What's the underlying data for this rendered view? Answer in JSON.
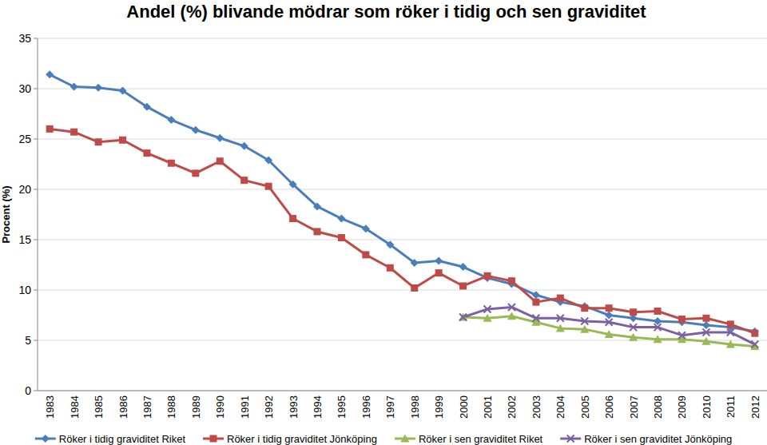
{
  "chart_data": {
    "type": "line",
    "title": "Andel (%) blivande mödrar som röker i tidig och sen graviditet",
    "y_label": "Procent (%)",
    "categories": [
      "1983",
      "1984",
      "1985",
      "1986",
      "1987",
      "1988",
      "1989",
      "1990",
      "1991",
      "1992",
      "1993",
      "1994",
      "1995",
      "1996",
      "1997",
      "1998",
      "1999",
      "2000",
      "2001",
      "2002",
      "2003",
      "2004",
      "2005",
      "2006",
      "2007",
      "2008",
      "2009",
      "2010",
      "2011",
      "2012"
    ],
    "ylim": [
      0,
      35
    ],
    "yticks": [
      0,
      5,
      10,
      15,
      20,
      25,
      30,
      35
    ],
    "grid": true,
    "legend": "bottom",
    "series": [
      {
        "name": "Röker i tidig graviditet Riket",
        "color": "#4a7ebb",
        "marker": "diamond",
        "line_style": "solid",
        "values": [
          31.4,
          30.2,
          30.1,
          29.8,
          28.2,
          26.9,
          25.9,
          25.1,
          24.3,
          22.9,
          20.5,
          18.3,
          17.1,
          16.1,
          14.5,
          12.7,
          12.9,
          12.3,
          11.2,
          10.6,
          9.5,
          8.8,
          8.4,
          7.5,
          7.2,
          6.9,
          6.8,
          6.5,
          6.3,
          5.9
        ]
      },
      {
        "name": "Röker i tidig graviditet Jönköping",
        "color": "#be4b48",
        "marker": "square",
        "line_style": "solid",
        "values": [
          26.0,
          25.7,
          24.7,
          24.9,
          23.6,
          22.6,
          21.6,
          22.8,
          20.9,
          20.3,
          17.1,
          15.8,
          15.2,
          13.5,
          12.2,
          10.2,
          11.7,
          10.4,
          11.4,
          10.9,
          8.8,
          9.2,
          8.2,
          8.2,
          7.8,
          7.9,
          7.1,
          7.2,
          6.6,
          5.7
        ]
      },
      {
        "name": "Röker i sen graviditet Riket",
        "color": "#98b954",
        "marker": "triangle",
        "line_style": "solid",
        "values": [
          null,
          null,
          null,
          null,
          null,
          null,
          null,
          null,
          null,
          null,
          null,
          null,
          null,
          null,
          null,
          null,
          null,
          7.3,
          7.2,
          7.4,
          6.8,
          6.2,
          6.1,
          5.6,
          5.3,
          5.1,
          5.1,
          4.9,
          4.6,
          4.4
        ]
      },
      {
        "name": "Röker i sen graviditet Jönköping",
        "color": "#7d60a0",
        "marker": "x",
        "line_style": "solid",
        "values": [
          null,
          null,
          null,
          null,
          null,
          null,
          null,
          null,
          null,
          null,
          null,
          null,
          null,
          null,
          null,
          null,
          null,
          7.3,
          8.1,
          8.3,
          7.2,
          7.2,
          6.9,
          6.8,
          6.3,
          6.3,
          5.5,
          5.8,
          5.8,
          4.6
        ]
      }
    ]
  }
}
